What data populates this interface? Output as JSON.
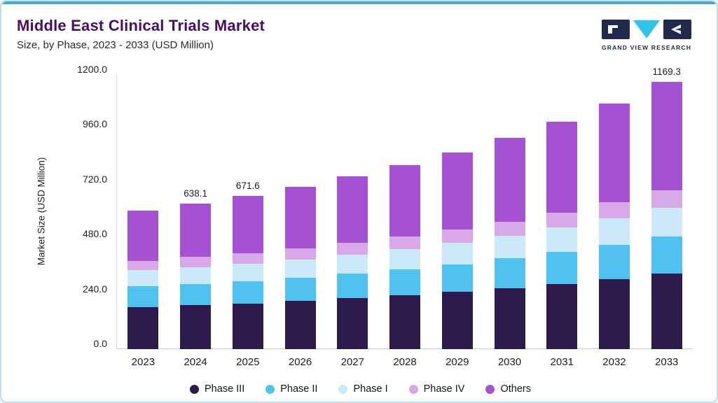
{
  "colors": {
    "top_accent": "#49a8cf",
    "card_border": "#bfdeed",
    "title": "#4a0d66",
    "logo_navy": "#20294c",
    "logo_cyan": "#2ec6e6"
  },
  "header": {
    "title": "Middle East Clinical Trials Market",
    "subtitle": "Size, by Phase, 2023 - 2033 (USD Million)",
    "logo_text": "GRAND VIEW RESEARCH"
  },
  "chart_data": {
    "type": "bar",
    "stacked": true,
    "title": "Middle East Clinical Trials Market Size, by Phase, 2023 - 2033 (USD Million)",
    "ylabel": "Market Size (USD Million)",
    "xlabel": "",
    "ylim": [
      0,
      1200
    ],
    "ytick_labels": [
      "0.0",
      "240.0",
      "480.0",
      "720.0",
      "960.0",
      "1200.0"
    ],
    "grid": false,
    "legend_position": "bottom",
    "categories": [
      "2023",
      "2024",
      "2025",
      "2026",
      "2027",
      "2028",
      "2029",
      "2030",
      "2031",
      "2032",
      "2033"
    ],
    "series": [
      {
        "name": "Phase III",
        "color": "#2e1a4d",
        "values": [
          185,
          192,
          200,
          210,
          222,
          235,
          250,
          267,
          286,
          307,
          332
        ]
      },
      {
        "name": "Phase II",
        "color": "#4fc2f0",
        "values": [
          90,
          94,
          98,
          103,
          108,
          115,
          122,
          130,
          139,
          150,
          162
        ]
      },
      {
        "name": "Phase I",
        "color": "#cce9fa",
        "values": [
          70,
          73,
          76,
          80,
          84,
          89,
          94,
          100,
          107,
          115,
          124
        ]
      },
      {
        "name": "Phase IV",
        "color": "#d8a8e8",
        "values": [
          42,
          44,
          46,
          48,
          51,
          54,
          57,
          61,
          65,
          70,
          76
        ]
      },
      {
        "name": "Others",
        "color": "#a551d3",
        "values": [
          219,
          235.1,
          251.6,
          269,
          290,
          312,
          337,
          367,
          398,
          433,
          475.3
        ]
      }
    ],
    "totals": [
      606,
      638.1,
      671.6,
      710,
      755,
      805,
      860,
      925,
      995,
      1075,
      1169.3
    ],
    "bar_labels": [
      "",
      "638.1",
      "671.6",
      "",
      "",
      "",
      "",
      "",
      "",
      "",
      "1169.3"
    ]
  }
}
